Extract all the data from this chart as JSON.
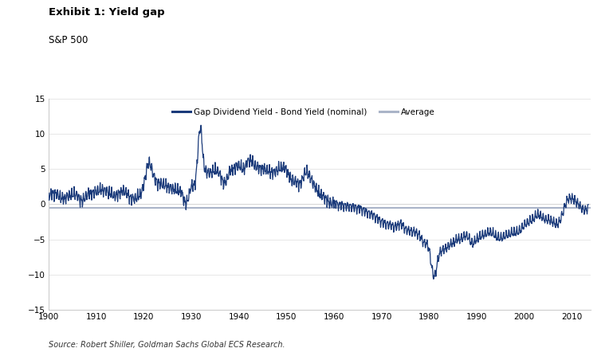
{
  "title": "Exhibit 1: Yield gap",
  "subtitle": "S&P 500",
  "source": "Source: Robert Shiller, Goldman Sachs Global ECS Research.",
  "line_color": "#1a3a7a",
  "average_color": "#aab4c8",
  "background_color": "#ffffff",
  "xlim": [
    1900,
    2014
  ],
  "ylim": [
    -15,
    15
  ],
  "yticks": [
    -15,
    -10,
    -5,
    0,
    5,
    10,
    15
  ],
  "xticks": [
    1900,
    1910,
    1920,
    1930,
    1940,
    1950,
    1960,
    1970,
    1980,
    1990,
    2000,
    2010
  ],
  "average_value": -0.55,
  "legend_line_label": "Gap Dividend Yield - Bond Yield (nominal)",
  "legend_avg_label": "Average"
}
